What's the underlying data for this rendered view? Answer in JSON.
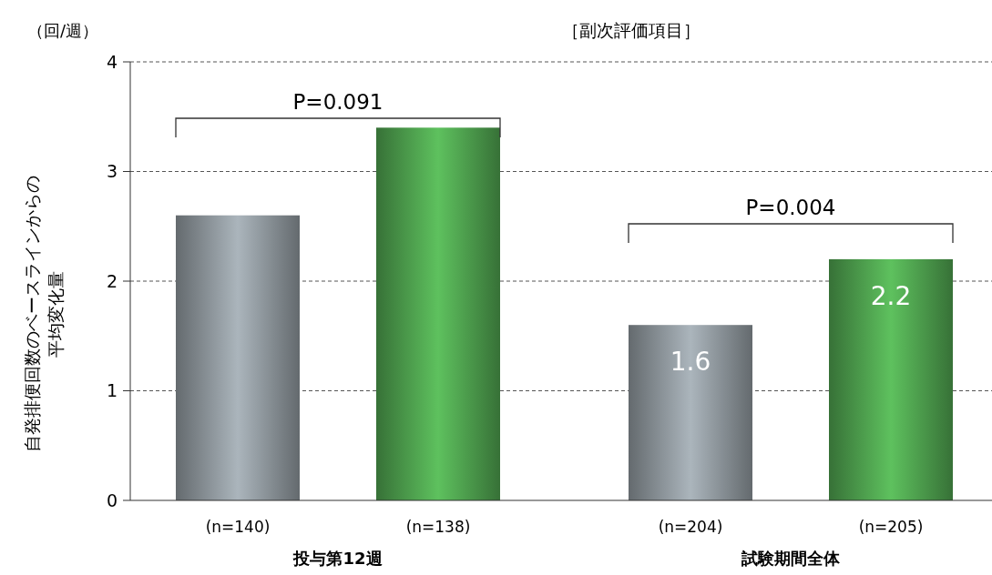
{
  "chart_data": {
    "type": "bar",
    "title": "［副次評価項目］",
    "ylabel": "自発排便回数のベースラインからの平均変化量",
    "categories": [
      "(n=140)",
      "(n=138)",
      "(n=204)",
      "(n=205)"
    ],
    "values": [
      2.6,
      3.4,
      1.6,
      2.2
    ],
    "colors": [
      "#8a9298",
      "#4c9c4c",
      "#8a9298",
      "#4c9c4c"
    ],
    "value_labels": [
      null,
      null,
      "1.6",
      "2.2"
    ],
    "ylim": [
      0,
      4
    ],
    "yticks": [
      0,
      1,
      2,
      3,
      4
    ],
    "grid": "y",
    "annotations": [
      "（回/週）",
      "投与第12週",
      "試験期間全体",
      "P=0.091",
      "P=0.004"
    ]
  }
}
